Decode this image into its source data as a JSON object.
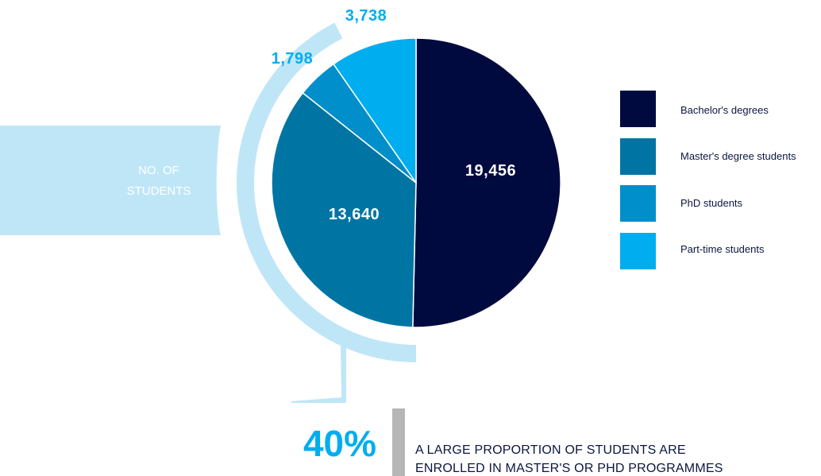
{
  "chart_data": {
    "type": "pie",
    "categories": [
      "Bachelor's degrees",
      "Master's degree students",
      "PhD students",
      "Part-time students"
    ],
    "values": [
      19456,
      13640,
      1798,
      3738
    ],
    "value_labels": [
      "19,456",
      "13,640",
      "1,798",
      "3,738"
    ],
    "colors": [
      "#000a3e",
      "#0075a4",
      "#008fca",
      "#00adef"
    ],
    "label_colors": [
      "#ffffff",
      "#ffffff",
      "#00adef",
      "#00adef"
    ],
    "legend_position": "right",
    "side_label": [
      "NO. OF",
      "STUDENTS"
    ],
    "highlight_percent": "40%",
    "highlight_text": [
      "A LARGE PROPORTION OF STUDENTS ARE",
      "ENROLLED IN MASTER'S OR PHD PROGRAMMES"
    ]
  },
  "colors": {
    "light_accent": "#bfe6f7",
    "accent": "#00aeef",
    "dark": "#000a3e"
  }
}
